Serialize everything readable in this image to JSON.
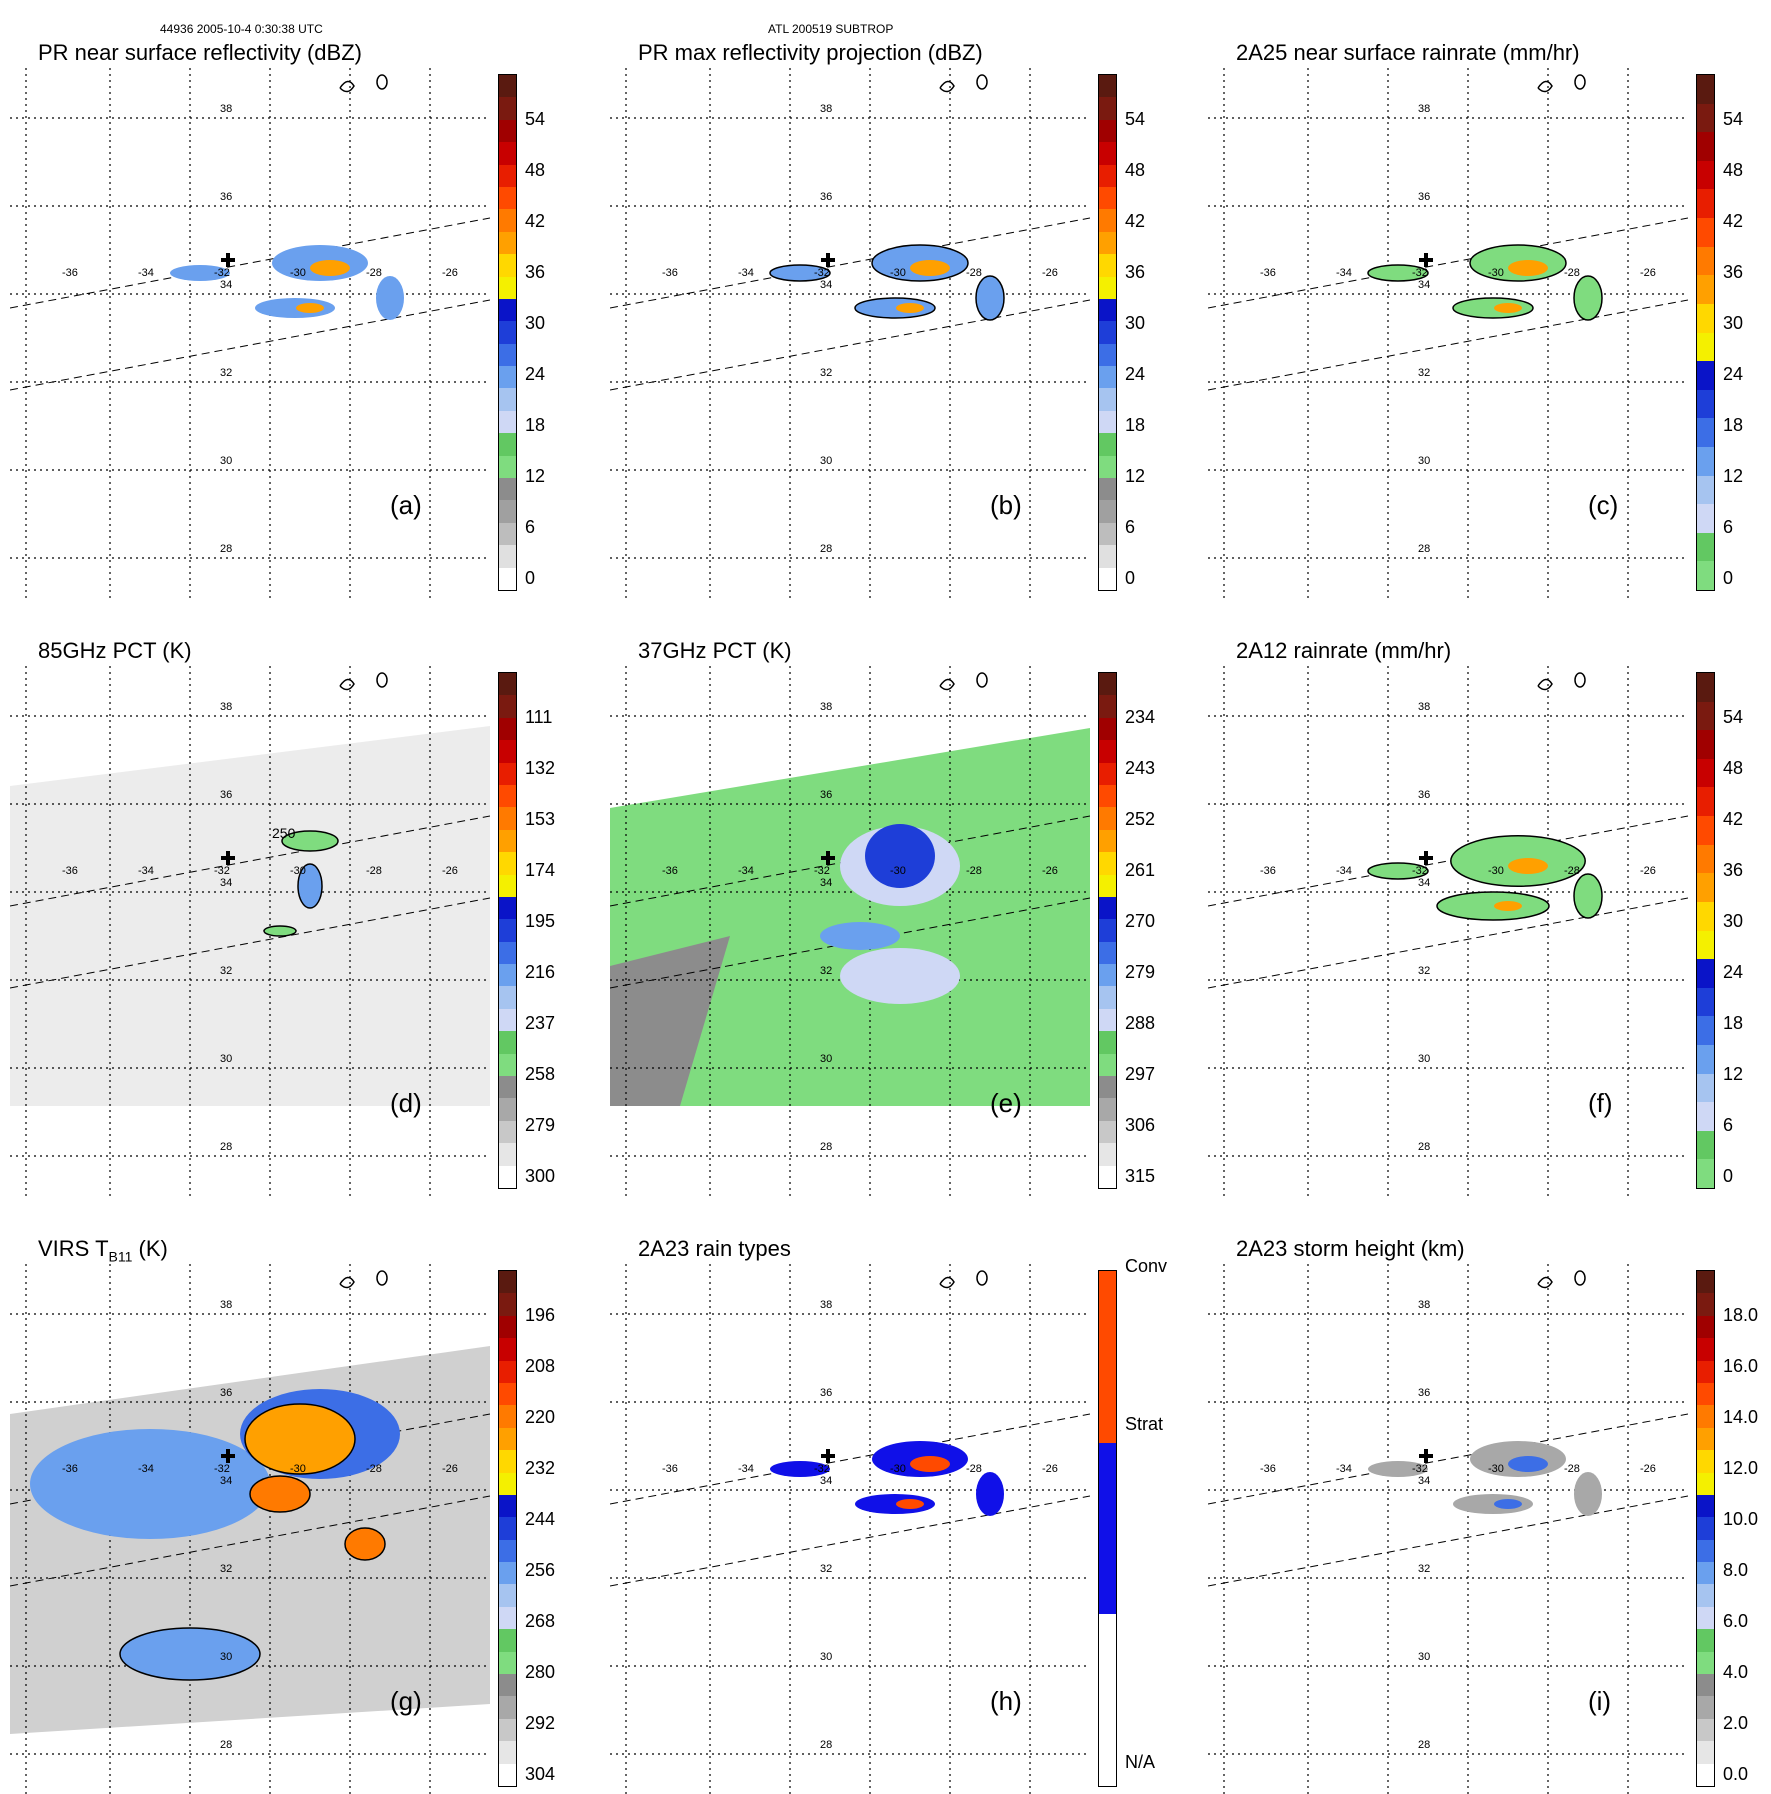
{
  "header": {
    "left": "44936 2005-10-4 0:30:38 UTC",
    "center": "ATL 200519 SUBTROP"
  },
  "panels": [
    {
      "id": "a",
      "title": "PR near surface reflectivity (dBZ)",
      "label": "(a)",
      "ticks": [
        "0",
        "6",
        "12",
        "18",
        "24",
        "30",
        "36",
        "42",
        "48",
        "54"
      ],
      "palette": "dbz"
    },
    {
      "id": "b",
      "title": "PR max reflectivity projection (dBZ)",
      "label": "(b)",
      "ticks": [
        "0",
        "6",
        "12",
        "18",
        "24",
        "30",
        "36",
        "42",
        "48",
        "54"
      ],
      "palette": "dbz"
    },
    {
      "id": "c",
      "title": "2A25 near surface rainrate (mm/hr)",
      "label": "(c)",
      "ticks": [
        "0",
        "6",
        "12",
        "18",
        "24",
        "30",
        "36",
        "42",
        "48",
        "54"
      ],
      "palette": "rain"
    },
    {
      "id": "d",
      "title": "85GHz PCT (K)",
      "label": "(d)",
      "ticks": [
        "300",
        "279",
        "258",
        "237",
        "216",
        "195",
        "174",
        "153",
        "132",
        "111"
      ],
      "palette": "pct",
      "contour": "250"
    },
    {
      "id": "e",
      "title": "37GHz PCT (K)",
      "label": "(e)",
      "ticks": [
        "315",
        "306",
        "297",
        "288",
        "279",
        "270",
        "261",
        "252",
        "243",
        "234"
      ],
      "palette": "pct"
    },
    {
      "id": "f",
      "title": "2A12 rainrate (mm/hr)",
      "label": "(f)",
      "ticks": [
        "0",
        "6",
        "12",
        "18",
        "24",
        "30",
        "36",
        "42",
        "48",
        "54"
      ],
      "palette": "rain"
    },
    {
      "id": "g",
      "title": "VIRS T",
      "title_sub": "B11",
      "title_suffix": " (K)",
      "label": "(g)",
      "ticks": [
        "304",
        "292",
        "280",
        "268",
        "256",
        "244",
        "232",
        "220",
        "208",
        "196"
      ],
      "palette": "pct"
    },
    {
      "id": "h",
      "title": "2A23 rain types",
      "label": "(h)",
      "ticks": [
        "N/A",
        "Strat",
        "Conv"
      ],
      "palette": "types"
    },
    {
      "id": "i",
      "title": "2A23 storm height (km)",
      "label": "(i)",
      "ticks": [
        "0.0",
        "2.0",
        "4.0",
        "6.0",
        "8.0",
        "10.0",
        "12.0",
        "14.0",
        "16.0",
        "18.0"
      ],
      "palette": "height"
    }
  ],
  "map": {
    "lat_labels": [
      "38",
      "36",
      "34",
      "32",
      "30",
      "28"
    ],
    "lon_labels": [
      "-36",
      "-34",
      "-32",
      "-30",
      "-28",
      "-26"
    ]
  },
  "colors": {
    "dbz": [
      "#ffffff",
      "#e0e0e0",
      "#bdbdbd",
      "#a0a0a0",
      "#8c8c8c",
      "#7fdc7f",
      "#62c862",
      "#cfd8f5",
      "#a6c4f0",
      "#6aa0ee",
      "#3c6ee6",
      "#1e3ed8",
      "#0a14c8",
      "#f4f000",
      "#ffd800",
      "#ffa000",
      "#ff7a00",
      "#ff4a00",
      "#e81e00",
      "#c80000",
      "#a00000",
      "#7a1a10",
      "#5a1a10"
    ],
    "rain": [
      "#7fdc7f",
      "#62c862",
      "#cfd8f5",
      "#a6c4f0",
      "#6aa0ee",
      "#3c6ee6",
      "#1e3ed8",
      "#0a14c8",
      "#f4f000",
      "#ffd800",
      "#ffa000",
      "#ff7a00",
      "#ff4a00",
      "#e81e00",
      "#c80000",
      "#a00000",
      "#7a1a10",
      "#5a1a10"
    ],
    "pct": [
      "#ffffff",
      "#e6e6e6",
      "#c8c8c8",
      "#a8a8a8",
      "#8c8c8c",
      "#7fdc7f",
      "#62c862",
      "#cfd8f5",
      "#a6c4f0",
      "#6aa0ee",
      "#3c6ee6",
      "#1e3ed8",
      "#0a14c8",
      "#f4f000",
      "#ffd800",
      "#ffa000",
      "#ff7a00",
      "#ff4a00",
      "#e81e00",
      "#c80000",
      "#a00000",
      "#7a1a10",
      "#5a1a10"
    ],
    "height": [
      "#ffffff",
      "#e6e6e6",
      "#c8c8c8",
      "#a8a8a8",
      "#8c8c8c",
      "#7fdc7f",
      "#62c862",
      "#cfd8f5",
      "#a6c4f0",
      "#6aa0ee",
      "#3c6ee6",
      "#1e3ed8",
      "#0a14c8",
      "#f4f000",
      "#ffd800",
      "#ffa000",
      "#ff7a00",
      "#ff4a00",
      "#e81e00",
      "#c80000",
      "#a00000",
      "#7a1a10",
      "#5a1a10"
    ],
    "types": [
      "#ffffff",
      "#ffffff",
      "#ffffff",
      "#ffffff",
      "#ffffff",
      "#1010e8",
      "#1010e8",
      "#1010e8",
      "#1010e8",
      "#1010e8",
      "#ff4a00",
      "#ff4a00",
      "#ff4a00",
      "#ff4a00",
      "#ff4a00"
    ]
  }
}
